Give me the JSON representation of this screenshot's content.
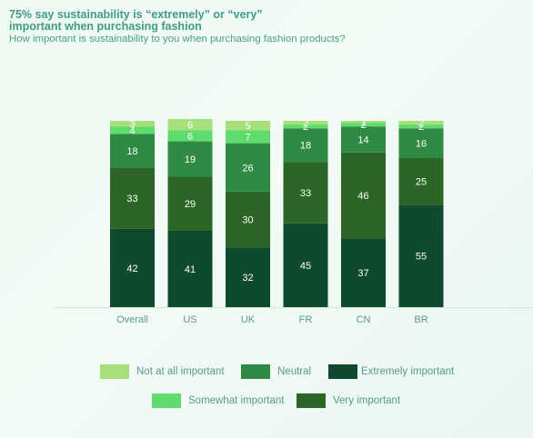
{
  "chart_data": {
    "type": "bar",
    "stacked": true,
    "title": "75% say sustainability is “extremely” or “very” important when purchasing fashion",
    "subtitle": "How important is sustainability to you when purchasing fashion products?",
    "categories": [
      "Overall",
      "US",
      "UK",
      "FR",
      "CN",
      "BR"
    ],
    "ylim": [
      0,
      100
    ],
    "series": [
      {
        "name": "Extremely important",
        "color": "#0f4a2e",
        "values": [
          42,
          41,
          32,
          45,
          37,
          55
        ]
      },
      {
        "name": "Very important",
        "color": "#2b6626",
        "values": [
          33,
          29,
          30,
          33,
          46,
          25
        ]
      },
      {
        "name": "Neutral",
        "color": "#2f8a43",
        "values": [
          18,
          19,
          26,
          18,
          14,
          16
        ]
      },
      {
        "name": "Somewhat important",
        "color": "#5fdc6b",
        "values": [
          4,
          6,
          7,
          2,
          2,
          2
        ]
      },
      {
        "name": "Not at all important",
        "color": "#a7e07b",
        "values": [
          3,
          6,
          5,
          2,
          1,
          2
        ]
      }
    ],
    "legend_position": "bottom",
    "grid": false
  }
}
